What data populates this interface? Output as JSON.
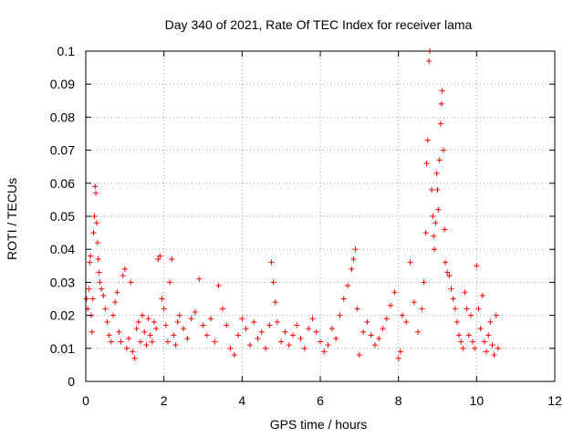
{
  "chart_data": {
    "type": "scatter",
    "title": "Day 340 of 2021, Rate Of TEC Index for receiver lama",
    "xlabel": "GPS time / hours",
    "ylabel": "ROTI / TECUs",
    "xlim": [
      0,
      12
    ],
    "ylim": [
      0,
      0.1
    ],
    "xticks": [
      "0",
      "2",
      "4",
      "6",
      "8",
      "10",
      "12"
    ],
    "yticks": [
      "0",
      "0.01",
      "0.02",
      "0.03",
      "0.04",
      "0.05",
      "0.06",
      "0.07",
      "0.08",
      "0.09",
      "0.1"
    ],
    "grid": true,
    "marker": "+",
    "color": "#ff0000",
    "series": [
      {
        "name": "ROTI",
        "points": [
          [
            0.02,
            0.025
          ],
          [
            0.05,
            0.022
          ],
          [
            0.08,
            0.028
          ],
          [
            0.1,
            0.036
          ],
          [
            0.12,
            0.038
          ],
          [
            0.14,
            0.02
          ],
          [
            0.16,
            0.015
          ],
          [
            0.18,
            0.025
          ],
          [
            0.2,
            0.045
          ],
          [
            0.22,
            0.05
          ],
          [
            0.24,
            0.059
          ],
          [
            0.26,
            0.057
          ],
          [
            0.28,
            0.048
          ],
          [
            0.3,
            0.042
          ],
          [
            0.32,
            0.037
          ],
          [
            0.34,
            0.033
          ],
          [
            0.36,
            0.03
          ],
          [
            0.4,
            0.028
          ],
          [
            0.45,
            0.026
          ],
          [
            0.5,
            0.022
          ],
          [
            0.55,
            0.018
          ],
          [
            0.6,
            0.014
          ],
          [
            0.65,
            0.012
          ],
          [
            0.7,
            0.02
          ],
          [
            0.75,
            0.024
          ],
          [
            0.8,
            0.027
          ],
          [
            0.85,
            0.015
          ],
          [
            0.9,
            0.012
          ],
          [
            0.95,
            0.032
          ],
          [
            1.0,
            0.034
          ],
          [
            1.05,
            0.01
          ],
          [
            1.1,
            0.013
          ],
          [
            1.15,
            0.03
          ],
          [
            1.2,
            0.009
          ],
          [
            1.25,
            0.007
          ],
          [
            1.3,
            0.016
          ],
          [
            1.35,
            0.018
          ],
          [
            1.4,
            0.012
          ],
          [
            1.45,
            0.02
          ],
          [
            1.5,
            0.015
          ],
          [
            1.55,
            0.011
          ],
          [
            1.6,
            0.019
          ],
          [
            1.65,
            0.014
          ],
          [
            1.7,
            0.012
          ],
          [
            1.75,
            0.018
          ],
          [
            1.8,
            0.016
          ],
          [
            1.85,
            0.037
          ],
          [
            1.9,
            0.038
          ],
          [
            1.95,
            0.025
          ],
          [
            2.0,
            0.022
          ],
          [
            2.05,
            0.017
          ],
          [
            2.1,
            0.012
          ],
          [
            2.15,
            0.03
          ],
          [
            2.2,
            0.037
          ],
          [
            2.25,
            0.014
          ],
          [
            2.3,
            0.011
          ],
          [
            2.35,
            0.018
          ],
          [
            2.4,
            0.02
          ],
          [
            2.5,
            0.016
          ],
          [
            2.6,
            0.013
          ],
          [
            2.7,
            0.019
          ],
          [
            2.8,
            0.021
          ],
          [
            2.9,
            0.031
          ],
          [
            3.0,
            0.017
          ],
          [
            3.1,
            0.014
          ],
          [
            3.2,
            0.019
          ],
          [
            3.3,
            0.012
          ],
          [
            3.4,
            0.029
          ],
          [
            3.5,
            0.022
          ],
          [
            3.6,
            0.017
          ],
          [
            3.7,
            0.01
          ],
          [
            3.8,
            0.008
          ],
          [
            3.9,
            0.014
          ],
          [
            4.0,
            0.019
          ],
          [
            4.1,
            0.016
          ],
          [
            4.2,
            0.011
          ],
          [
            4.3,
            0.018
          ],
          [
            4.4,
            0.013
          ],
          [
            4.5,
            0.015
          ],
          [
            4.6,
            0.01
          ],
          [
            4.7,
            0.017
          ],
          [
            4.75,
            0.036
          ],
          [
            4.8,
            0.03
          ],
          [
            4.85,
            0.024
          ],
          [
            4.9,
            0.018
          ],
          [
            5.0,
            0.012
          ],
          [
            5.1,
            0.015
          ],
          [
            5.2,
            0.011
          ],
          [
            5.3,
            0.014
          ],
          [
            5.4,
            0.017
          ],
          [
            5.5,
            0.013
          ],
          [
            5.6,
            0.01
          ],
          [
            5.7,
            0.016
          ],
          [
            5.8,
            0.019
          ],
          [
            5.9,
            0.015
          ],
          [
            6.0,
            0.012
          ],
          [
            6.1,
            0.009
          ],
          [
            6.2,
            0.011
          ],
          [
            6.3,
            0.016
          ],
          [
            6.4,
            0.013
          ],
          [
            6.5,
            0.02
          ],
          [
            6.6,
            0.025
          ],
          [
            6.7,
            0.029
          ],
          [
            6.8,
            0.034
          ],
          [
            6.85,
            0.037
          ],
          [
            6.9,
            0.04
          ],
          [
            6.95,
            0.022
          ],
          [
            7.0,
            0.008
          ],
          [
            7.1,
            0.015
          ],
          [
            7.2,
            0.018
          ],
          [
            7.3,
            0.014
          ],
          [
            7.4,
            0.011
          ],
          [
            7.5,
            0.013
          ],
          [
            7.6,
            0.016
          ],
          [
            7.7,
            0.019
          ],
          [
            7.8,
            0.023
          ],
          [
            7.9,
            0.027
          ],
          [
            8.0,
            0.007
          ],
          [
            8.05,
            0.009
          ],
          [
            8.1,
            0.02
          ],
          [
            8.2,
            0.018
          ],
          [
            8.3,
            0.036
          ],
          [
            8.4,
            0.024
          ],
          [
            8.5,
            0.015
          ],
          [
            8.6,
            0.022
          ],
          [
            8.65,
            0.03
          ],
          [
            8.7,
            0.045
          ],
          [
            8.72,
            0.066
          ],
          [
            8.75,
            0.073
          ],
          [
            8.78,
            0.097
          ],
          [
            8.8,
            0.1
          ],
          [
            8.85,
            0.058
          ],
          [
            8.88,
            0.05
          ],
          [
            8.9,
            0.044
          ],
          [
            8.92,
            0.04
          ],
          [
            8.95,
            0.048
          ],
          [
            8.98,
            0.063
          ],
          [
            9.0,
            0.058
          ],
          [
            9.02,
            0.052
          ],
          [
            9.05,
            0.067
          ],
          [
            9.08,
            0.078
          ],
          [
            9.1,
            0.084
          ],
          [
            9.12,
            0.088
          ],
          [
            9.15,
            0.07
          ],
          [
            9.18,
            0.046
          ],
          [
            9.2,
            0.036
          ],
          [
            9.25,
            0.033
          ],
          [
            9.3,
            0.032
          ],
          [
            9.35,
            0.028
          ],
          [
            9.4,
            0.025
          ],
          [
            9.45,
            0.022
          ],
          [
            9.5,
            0.018
          ],
          [
            9.55,
            0.014
          ],
          [
            9.6,
            0.012
          ],
          [
            9.65,
            0.01
          ],
          [
            9.7,
            0.027
          ],
          [
            9.75,
            0.022
          ],
          [
            9.8,
            0.014
          ],
          [
            9.85,
            0.02
          ],
          [
            9.9,
            0.012
          ],
          [
            9.95,
            0.01
          ],
          [
            10.0,
            0.035
          ],
          [
            10.05,
            0.022
          ],
          [
            10.1,
            0.016
          ],
          [
            10.15,
            0.026
          ],
          [
            10.2,
            0.012
          ],
          [
            10.25,
            0.009
          ],
          [
            10.3,
            0.014
          ],
          [
            10.35,
            0.018
          ],
          [
            10.4,
            0.011
          ],
          [
            10.45,
            0.008
          ],
          [
            10.5,
            0.02
          ],
          [
            10.55,
            0.01
          ]
        ]
      }
    ]
  }
}
